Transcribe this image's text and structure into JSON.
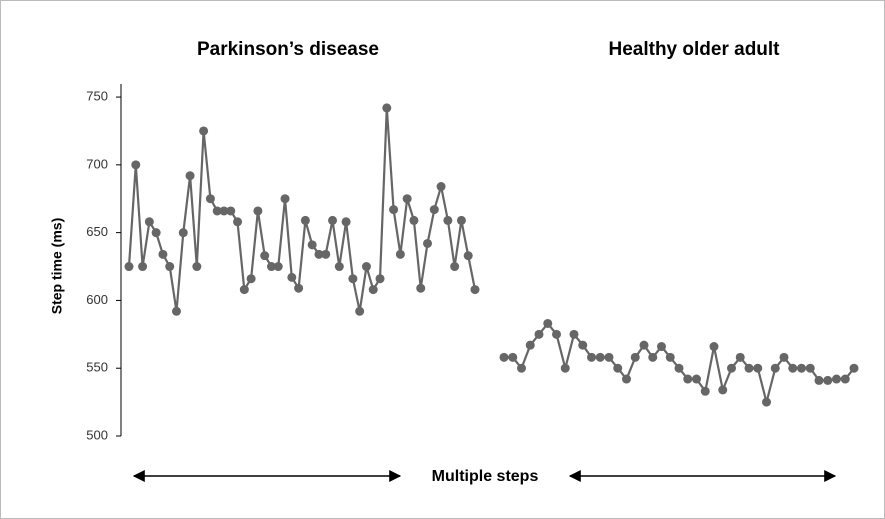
{
  "chart_data": {
    "type": "line",
    "ylabel": "Step time (ms)",
    "annotation": "Multiple steps",
    "ylim": [
      500,
      760
    ],
    "yticks": [
      500,
      550,
      600,
      650,
      700,
      750
    ],
    "series": [
      {
        "name": "Parkinson’s disease",
        "color": "#666666",
        "values": [
          625,
          700,
          625,
          658,
          650,
          634,
          625,
          592,
          650,
          692,
          625,
          725,
          675,
          666,
          666,
          666,
          658,
          608,
          616,
          666,
          633,
          625,
          625,
          675,
          617,
          609,
          659,
          641,
          634,
          634,
          659,
          625,
          658,
          616,
          592,
          625,
          608,
          616,
          742,
          667,
          634,
          675,
          659,
          609,
          642,
          667,
          684,
          659,
          625,
          659,
          633,
          608
        ]
      },
      {
        "name": "Healthy older adult",
        "color": "#666666",
        "values": [
          558,
          558,
          550,
          567,
          575,
          583,
          575,
          550,
          575,
          567,
          558,
          558,
          558,
          550,
          542,
          558,
          567,
          558,
          566,
          558,
          550,
          542,
          542,
          533,
          566,
          534,
          550,
          558,
          550,
          550,
          525,
          550,
          558,
          550,
          550,
          550,
          541,
          541,
          542,
          542,
          550
        ]
      }
    ]
  }
}
